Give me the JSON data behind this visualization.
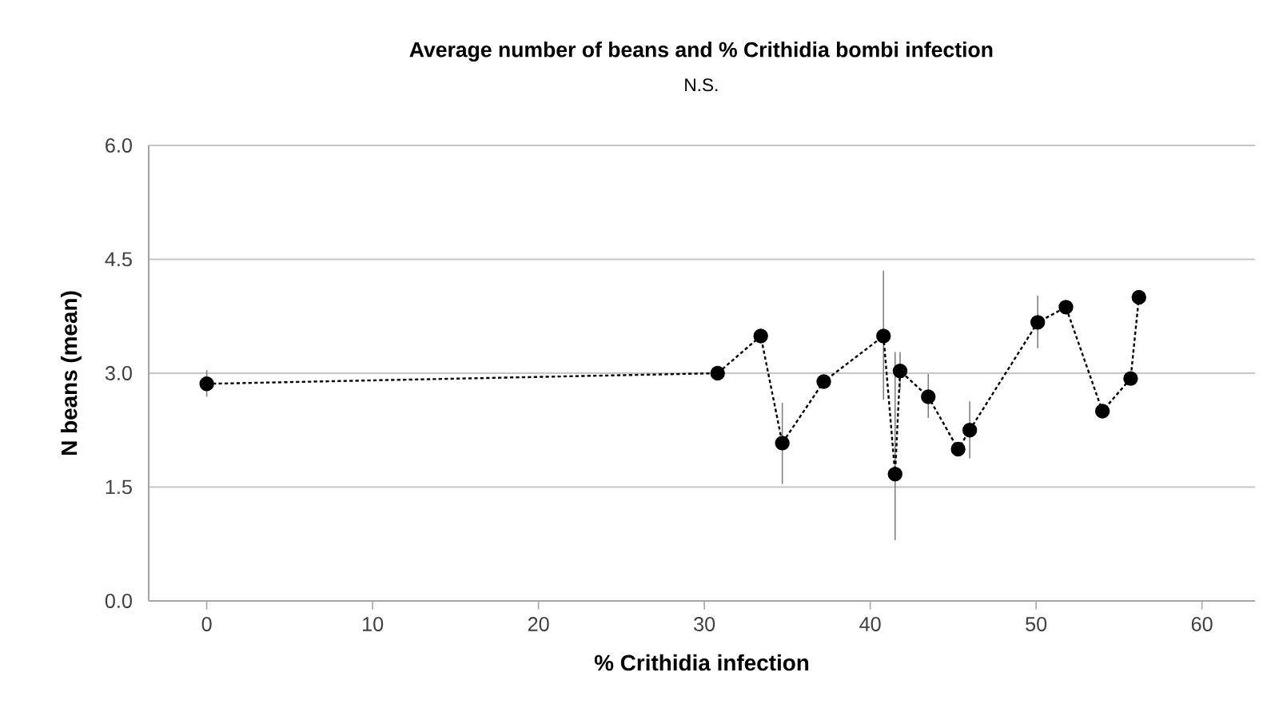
{
  "chart_data": {
    "type": "line",
    "title": "Average number of beans and % Crithidia bombi infection",
    "subtitle": "N.S.",
    "xlabel": "% Crithidia infection",
    "ylabel": "N beans (mean)",
    "x": [
      0,
      30.8,
      33.4,
      34.7,
      37.2,
      40.8,
      41.5,
      41.8,
      43.5,
      45.3,
      46.0,
      50.1,
      51.8,
      54.0,
      55.7,
      56.2
    ],
    "values": [
      2.86,
      3.0,
      3.49,
      2.08,
      2.89,
      3.49,
      1.67,
      3.03,
      2.69,
      2.0,
      2.25,
      3.67,
      3.87,
      2.5,
      2.93,
      4.0
    ],
    "errors": [
      [
        2.69,
        3.04
      ],
      null,
      null,
      [
        1.54,
        2.61
      ],
      null,
      [
        2.65,
        4.35
      ],
      [
        0.8,
        3.28
      ],
      [
        2.78,
        3.28
      ],
      [
        2.41,
        2.99
      ],
      null,
      [
        1.88,
        2.63
      ],
      [
        3.33,
        4.02
      ],
      null,
      null,
      null,
      null
    ],
    "color": "#000000",
    "marker": "circle",
    "line_style": "dotted",
    "xlim": [
      -3.5,
      63.2
    ],
    "ylim": [
      0,
      6
    ],
    "xticks": [
      0,
      10,
      20,
      30,
      40,
      50,
      60
    ],
    "yticks": [
      {
        "value": 0,
        "label": "0.0"
      },
      {
        "value": 1.5,
        "label": "1.5"
      },
      {
        "value": 3,
        "label": "3.0"
      },
      {
        "value": 4.5,
        "label": "4.5"
      },
      {
        "value": 6,
        "label": "6.0"
      }
    ],
    "grid": "y"
  }
}
